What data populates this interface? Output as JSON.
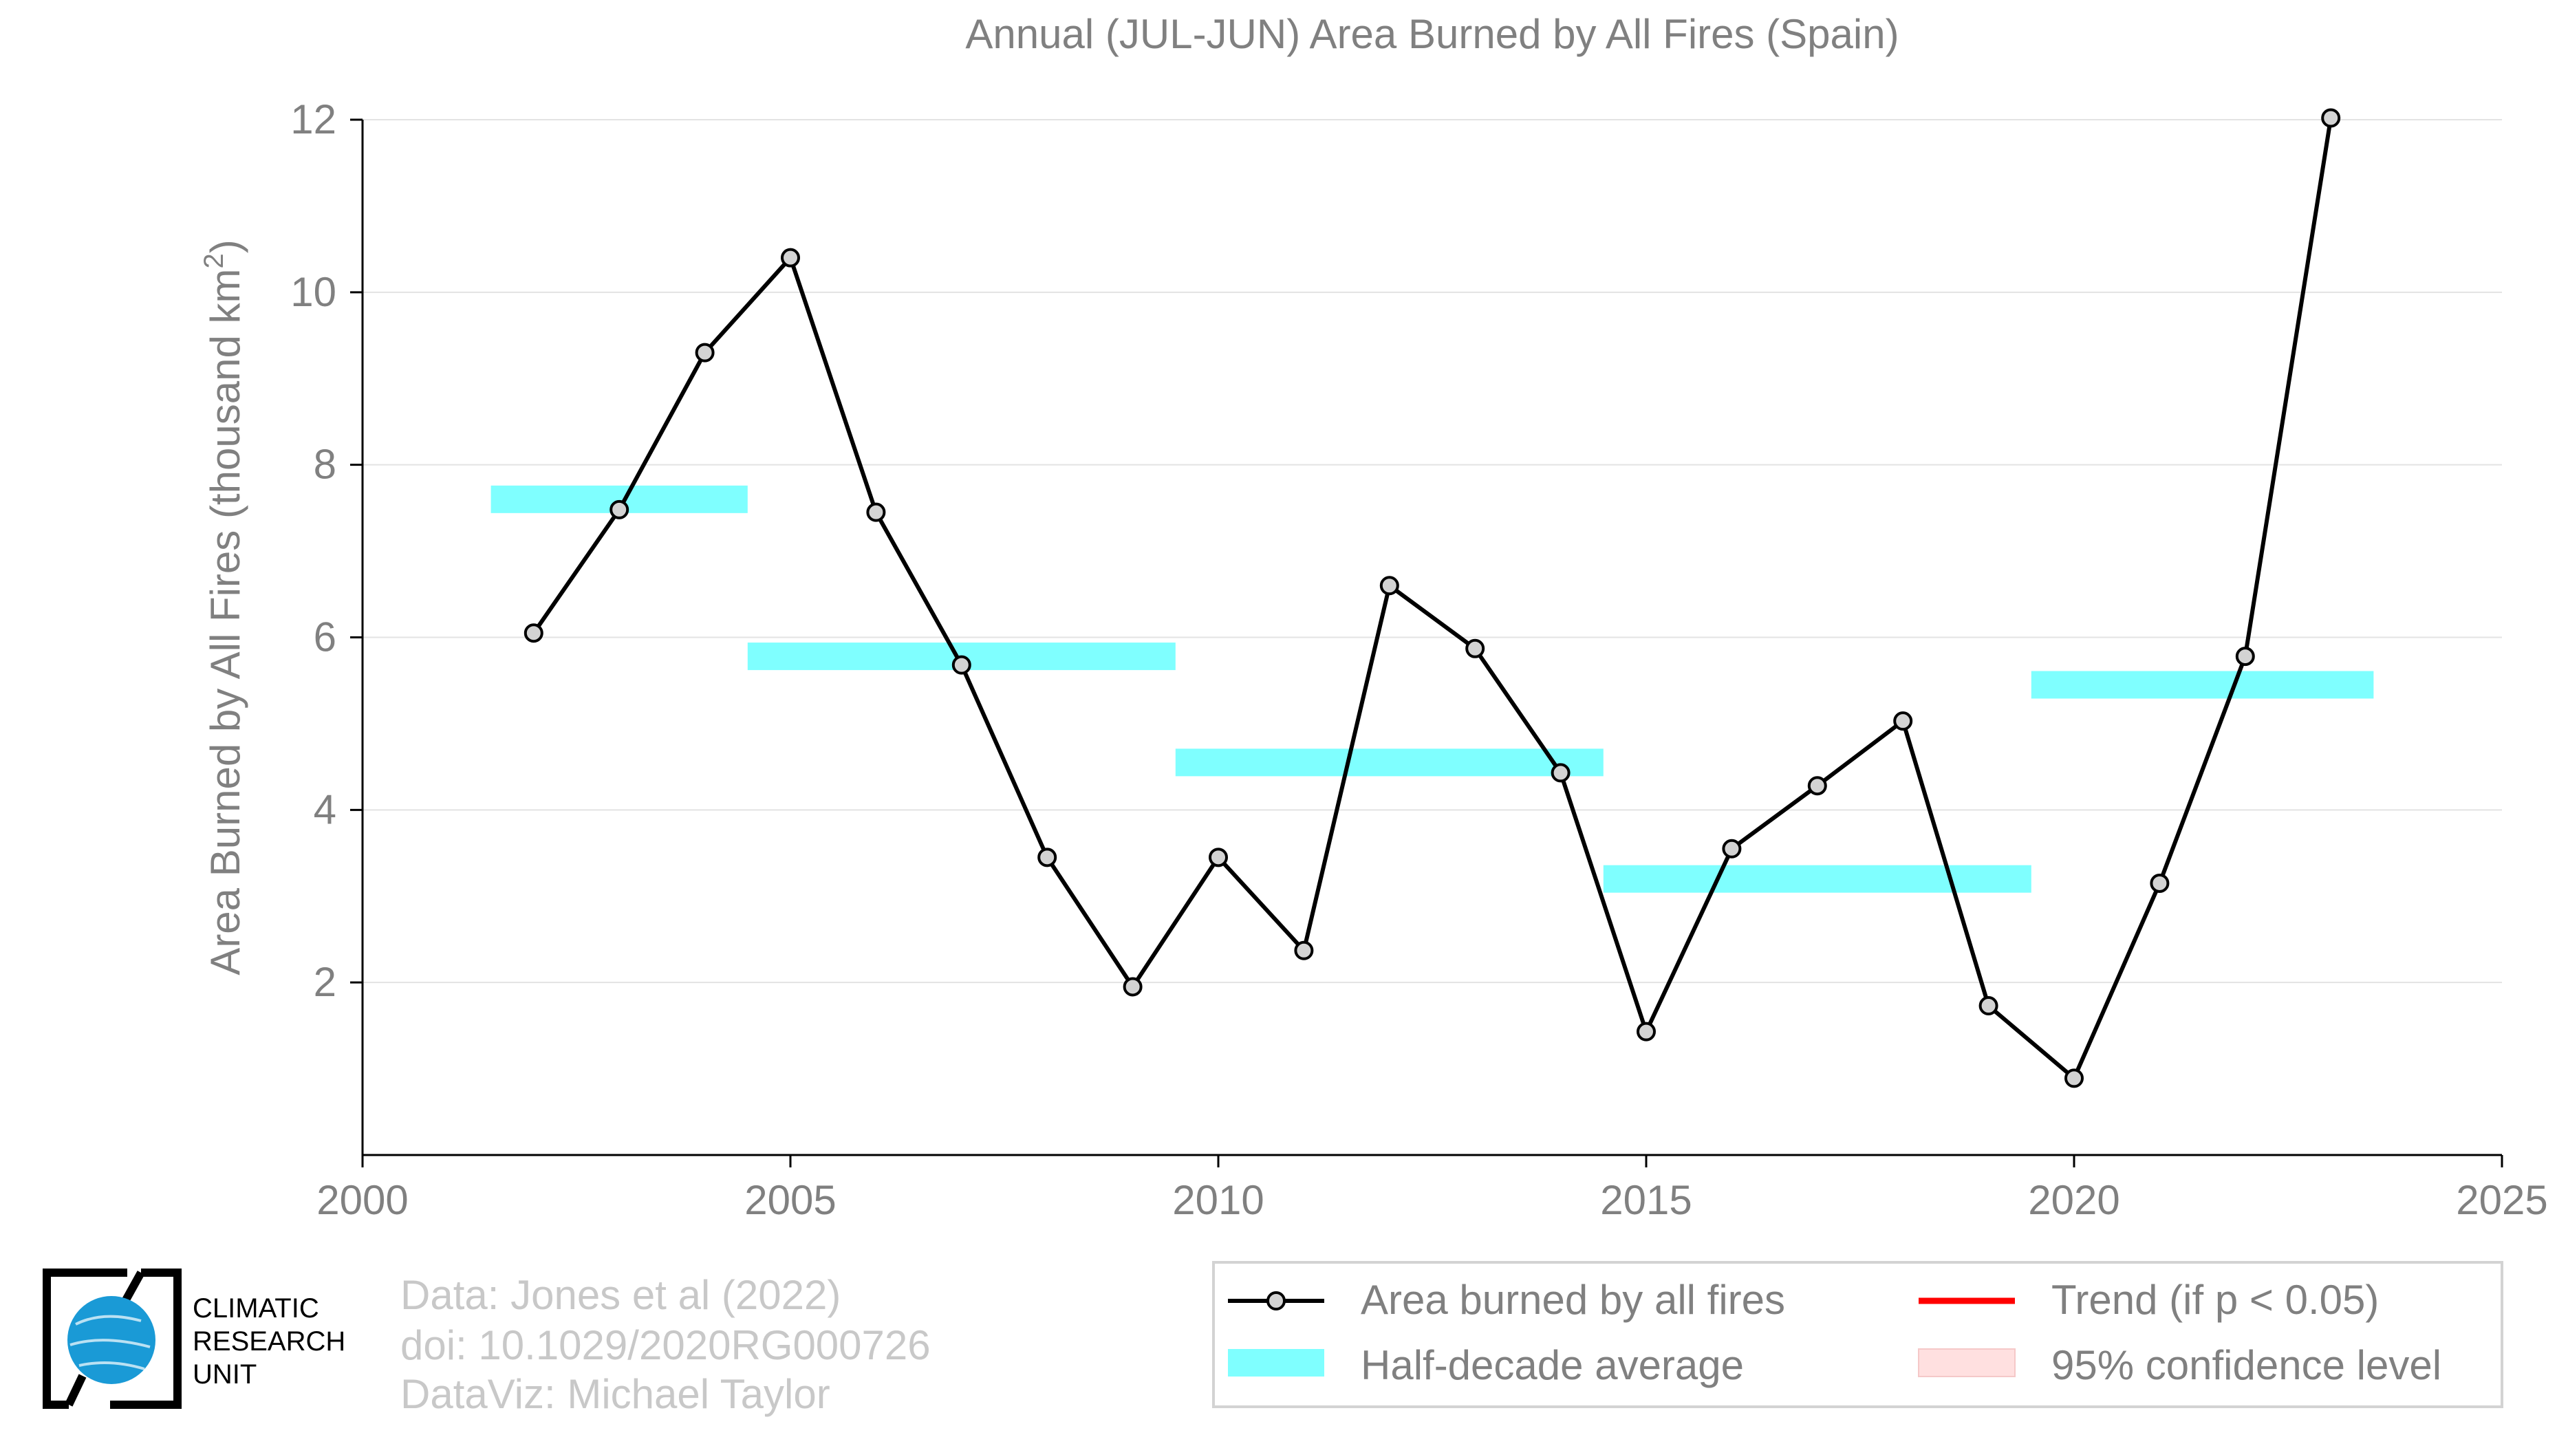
{
  "chart_data": {
    "type": "line",
    "title": "Annual (JUL-JUN) Area Burned by All Fires (Spain)",
    "ylabel_main": "Area Burned by All Fires (thousand km",
    "ylabel_sup": "2",
    "ylabel_close": ")",
    "xlabel": "",
    "xlim": [
      2000,
      2025
    ],
    "ylim": [
      0,
      12
    ],
    "xticks": [
      2000,
      2005,
      2010,
      2015,
      2020,
      2025
    ],
    "yticks": [
      2,
      4,
      6,
      8,
      10,
      12
    ],
    "grid": "horizontal",
    "series": [
      {
        "name": "Area burned by all fires",
        "color": "#000000",
        "marker_fill": "#d3d3d3",
        "x": [
          2002,
          2003,
          2004,
          2005,
          2006,
          2007,
          2008,
          2009,
          2010,
          2011,
          2012,
          2013,
          2014,
          2015,
          2016,
          2017,
          2018,
          2019,
          2020,
          2021,
          2022,
          2023
        ],
        "y": [
          6.05,
          7.48,
          9.3,
          10.4,
          7.45,
          5.68,
          3.45,
          1.95,
          3.45,
          2.37,
          6.6,
          5.87,
          4.43,
          1.43,
          3.55,
          4.28,
          5.03,
          1.73,
          0.89,
          3.15,
          5.78,
          12.02
        ]
      }
    ],
    "half_decade_average": {
      "name": "Half-decade average",
      "color": "#7fffff",
      "segments": [
        {
          "x0": 2001.5,
          "x1": 2004.5,
          "y": 7.6
        },
        {
          "x0": 2004.5,
          "x1": 2009.5,
          "y": 5.78
        },
        {
          "x0": 2009.5,
          "x1": 2014.5,
          "y": 4.55
        },
        {
          "x0": 2014.5,
          "x1": 2019.5,
          "y": 3.2
        },
        {
          "x0": 2019.5,
          "x1": 2023.5,
          "y": 5.45
        }
      ]
    },
    "legend": {
      "placement": "bottom-right",
      "entries": [
        {
          "label": "Area burned by all fires",
          "kind": "line-marker",
          "color": "#000000"
        },
        {
          "label": "Trend (if p < 0.05)",
          "kind": "line",
          "color": "#ff0000"
        },
        {
          "label": "Half-decade average",
          "kind": "band",
          "color": "#7fffff"
        },
        {
          "label": "95% confidence level",
          "kind": "band",
          "color": "#ffe0e0"
        }
      ]
    }
  },
  "credits": {
    "line1": "Data: Jones et al (2022)",
    "line2": "doi: 10.1029/2020RG000726",
    "line3": "DataViz: Michael Taylor"
  },
  "logo": {
    "line1": "CLIMATIC",
    "line2": "RESEARCH",
    "line3": "UNIT",
    "globe_color": "#1a9ad6"
  }
}
